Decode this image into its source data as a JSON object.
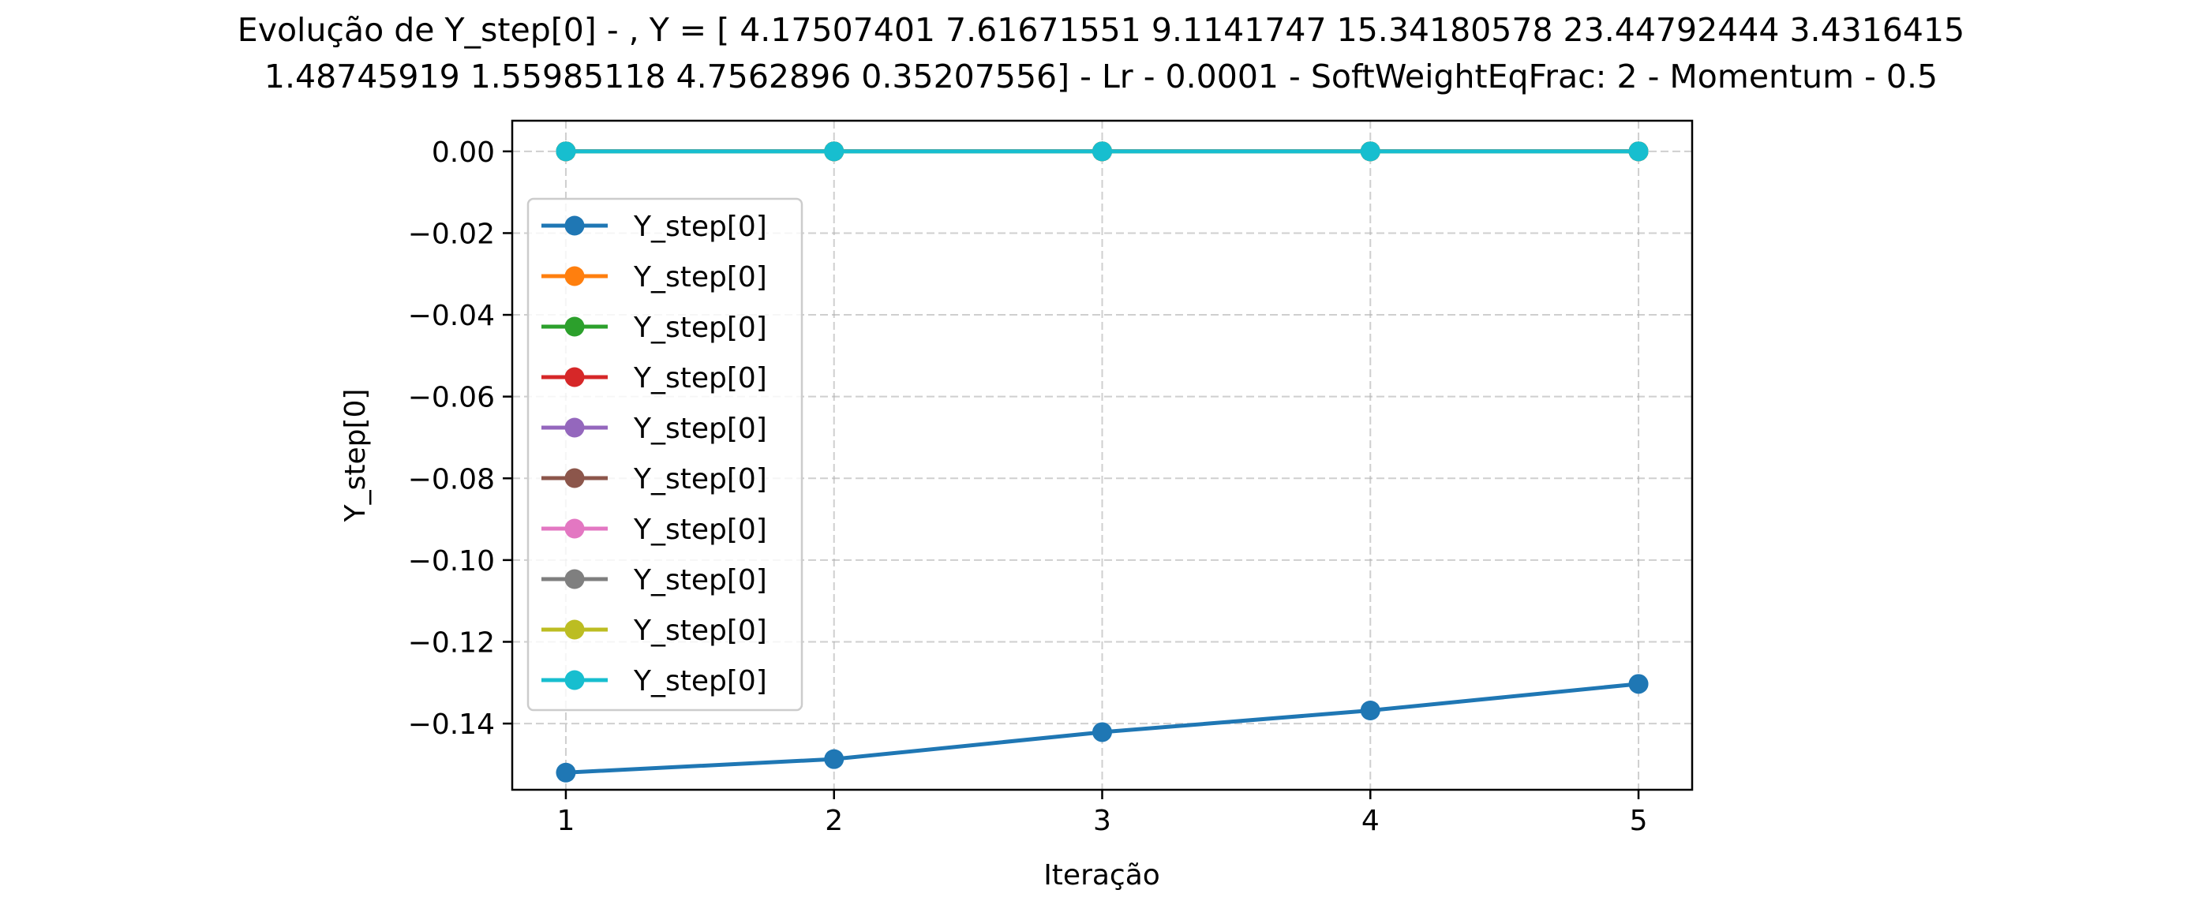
{
  "chart_data": {
    "type": "line",
    "title_lines": [
      "Evolução de Y_step[0] - , Y = [ 4.17507401  7.61671551  9.1141747  15.34180578 23.44792444  3.4316415",
      "1.48745919  1.55985118  4.7562896   0.35207556] - Lr - 0.0001 - SoftWeightEqFrac: 2 - Momentum - 0.5"
    ],
    "xlabel": "Iteração",
    "ylabel": "Y_step[0]",
    "x": [
      1,
      2,
      3,
      4,
      5
    ],
    "x_ticks": [
      1,
      2,
      3,
      4,
      5
    ],
    "x_tick_labels": [
      "1",
      "2",
      "3",
      "4",
      "5"
    ],
    "xlim": [
      0.8,
      5.2
    ],
    "ylim": [
      -0.1562,
      0.0075
    ],
    "y_ticks": [
      0,
      -0.02,
      -0.04,
      -0.06,
      -0.08,
      -0.1,
      -0.12,
      -0.14
    ],
    "y_tick_labels": [
      "0.00",
      "−0.02",
      "−0.04",
      "−0.06",
      "−0.08",
      "−0.10",
      "−0.12",
      "−0.14"
    ],
    "grid": true,
    "legend_position": "center-left",
    "markers": "circle",
    "series": [
      {
        "name": "Y_step[0]",
        "color": "#1f77b4",
        "values": [
          -0.152,
          -0.1487,
          -0.1421,
          -0.1368,
          -0.1303
        ]
      },
      {
        "name": "Y_step[0]",
        "color": "#ff7f0e",
        "values": [
          0,
          0,
          0,
          0,
          0
        ]
      },
      {
        "name": "Y_step[0]",
        "color": "#2ca02c",
        "values": [
          0,
          0,
          0,
          0,
          0
        ]
      },
      {
        "name": "Y_step[0]",
        "color": "#d62728",
        "values": [
          0,
          0,
          0,
          0,
          0
        ]
      },
      {
        "name": "Y_step[0]",
        "color": "#9467bd",
        "values": [
          0,
          0,
          0,
          0,
          0
        ]
      },
      {
        "name": "Y_step[0]",
        "color": "#8c564b",
        "values": [
          0,
          0,
          0,
          0,
          0
        ]
      },
      {
        "name": "Y_step[0]",
        "color": "#e377c2",
        "values": [
          0,
          0,
          0,
          0,
          0
        ]
      },
      {
        "name": "Y_step[0]",
        "color": "#7f7f7f",
        "values": [
          0,
          0,
          0,
          0,
          0
        ]
      },
      {
        "name": "Y_step[0]",
        "color": "#bcbd22",
        "values": [
          0,
          0,
          0,
          0,
          0
        ]
      },
      {
        "name": "Y_step[0]",
        "color": "#17becf",
        "values": [
          0,
          0,
          0,
          0,
          0
        ]
      }
    ]
  }
}
